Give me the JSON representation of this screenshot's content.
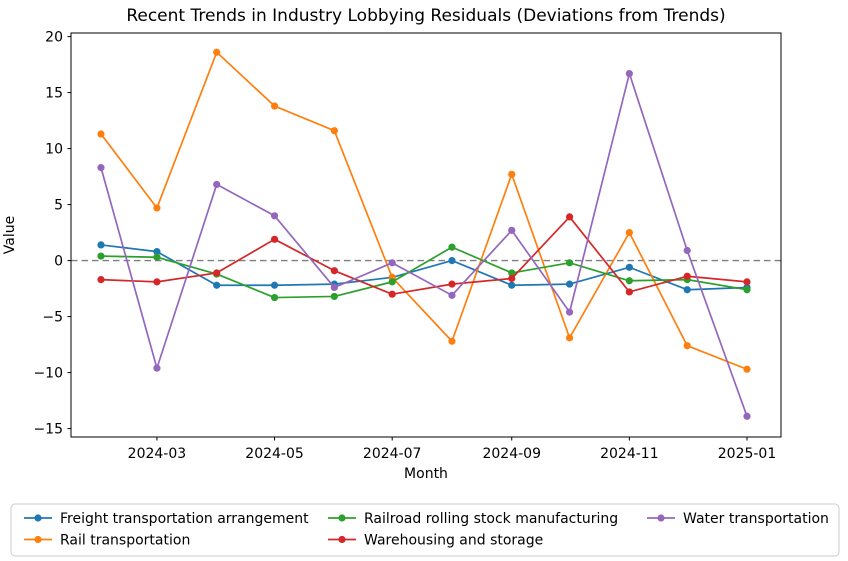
{
  "chart_data": {
    "type": "line",
    "title": "Recent Trends in Industry Lobbying Residuals (Deviations from Trends)",
    "xlabel": "Month",
    "ylabel": "Value",
    "x": [
      "2024-02",
      "2024-03",
      "2024-04",
      "2024-05",
      "2024-06",
      "2024-07",
      "2024-08",
      "2024-09",
      "2024-10",
      "2024-11",
      "2024-12",
      "2025-01"
    ],
    "xtick_labels": [
      "2024-03",
      "2024-05",
      "2024-07",
      "2024-09",
      "2024-11",
      "2025-01"
    ],
    "yticks": [
      -15,
      -10,
      -5,
      0,
      5,
      10,
      15,
      20
    ],
    "ylim": [
      -15.75,
      20.32
    ],
    "grid": false,
    "legend_position": "below",
    "zero_line": {
      "value": 0,
      "style": "dashed",
      "color": "#7f7f7f"
    },
    "series": [
      {
        "name": "Freight transportation arrangement",
        "color": "#1f77b4",
        "values": [
          1.4,
          0.8,
          -2.2,
          -2.2,
          -2.1,
          -1.5,
          0.0,
          -2.2,
          -2.1,
          -0.6,
          -2.6,
          -2.4
        ]
      },
      {
        "name": "Rail transportation",
        "color": "#ff7f0e",
        "values": [
          11.3,
          4.7,
          18.6,
          13.8,
          11.6,
          -1.5,
          -7.2,
          7.7,
          -6.9,
          2.5,
          -7.6,
          -9.7
        ]
      },
      {
        "name": "Railroad rolling stock manufacturing",
        "color": "#2ca02c",
        "values": [
          0.4,
          0.3,
          -1.2,
          -3.3,
          -3.2,
          -1.9,
          1.2,
          -1.1,
          -0.2,
          -1.8,
          -1.7,
          -2.6
        ]
      },
      {
        "name": "Warehousing and storage",
        "color": "#d62728",
        "values": [
          -1.7,
          -1.9,
          -1.1,
          1.9,
          -0.9,
          -3.0,
          -2.1,
          -1.6,
          3.9,
          -2.8,
          -1.4,
          -1.9
        ]
      },
      {
        "name": "Water transportation",
        "color": "#9467bd",
        "values": [
          8.3,
          -9.6,
          6.8,
          4.0,
          -2.4,
          -0.2,
          -3.1,
          2.7,
          -4.6,
          16.7,
          0.9,
          -13.9
        ]
      }
    ]
  }
}
